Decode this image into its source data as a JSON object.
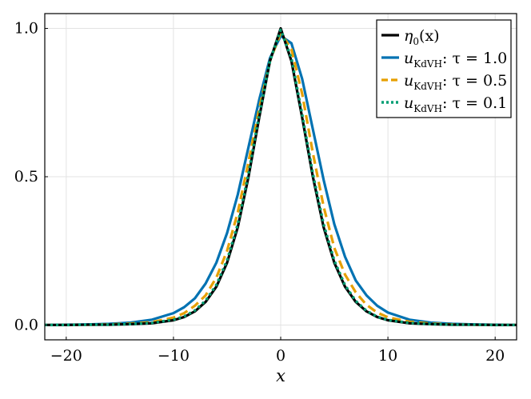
{
  "chart_data": {
    "type": "line",
    "title": "",
    "xlabel": "x",
    "ylabel": "",
    "xlim": [
      -22,
      22
    ],
    "ylim": [
      -0.05,
      1.05
    ],
    "grid": true,
    "legend_position": "top-right",
    "x_ticks": [
      -20,
      -10,
      0,
      10,
      20
    ],
    "x_tick_labels": [
      "−20",
      "−10",
      "0",
      "10",
      "20"
    ],
    "y_ticks": [
      0.0,
      0.5,
      1.0
    ],
    "y_tick_labels": [
      "0.0",
      "0.5",
      "1.0"
    ],
    "x": [
      -22,
      -20,
      -18,
      -16,
      -14,
      -12,
      -10,
      -9,
      -8,
      -7,
      -6,
      -5,
      -4,
      -3,
      -2,
      -1,
      0,
      1,
      2,
      3,
      4,
      5,
      6,
      7,
      8,
      9,
      10,
      12,
      14,
      16,
      18,
      20,
      22
    ],
    "series": [
      {
        "name": "η₀(x)",
        "legend_main": "η",
        "legend_sub": "0",
        "legend_rest": "(x)",
        "color": "#000000",
        "dash": "solid",
        "values": [
          0.0,
          0.0,
          0.001,
          0.001,
          0.003,
          0.006,
          0.016,
          0.027,
          0.046,
          0.078,
          0.129,
          0.21,
          0.33,
          0.5,
          0.7,
          0.89,
          1.0,
          0.89,
          0.7,
          0.5,
          0.33,
          0.21,
          0.129,
          0.078,
          0.046,
          0.027,
          0.016,
          0.006,
          0.003,
          0.001,
          0.001,
          0.0,
          0.0
        ]
      },
      {
        "name": "u_KdVH : τ = 1.0",
        "legend_main": "u",
        "legend_sub": "KdVH",
        "legend_rest": ": τ = 1.0",
        "color": "#0072b2",
        "dash": "solid",
        "values": [
          0.0,
          0.001,
          0.002,
          0.004,
          0.008,
          0.018,
          0.04,
          0.06,
          0.09,
          0.14,
          0.21,
          0.31,
          0.44,
          0.6,
          0.76,
          0.9,
          0.975,
          0.95,
          0.83,
          0.66,
          0.49,
          0.34,
          0.23,
          0.15,
          0.1,
          0.065,
          0.042,
          0.018,
          0.008,
          0.004,
          0.002,
          0.001,
          0.0
        ]
      },
      {
        "name": "u_KdVH : τ = 0.5",
        "legend_main": "u",
        "legend_sub": "KdVH",
        "legend_rest": ": τ = 0.5",
        "color": "#e69f00",
        "dash": "dashed",
        "values": [
          0.0,
          0.0,
          0.001,
          0.002,
          0.005,
          0.01,
          0.025,
          0.04,
          0.065,
          0.1,
          0.16,
          0.25,
          0.38,
          0.55,
          0.73,
          0.89,
          0.985,
          0.93,
          0.78,
          0.58,
          0.4,
          0.26,
          0.17,
          0.11,
          0.068,
          0.042,
          0.026,
          0.011,
          0.005,
          0.002,
          0.001,
          0.0,
          0.0
        ]
      },
      {
        "name": "u_KdVH : τ = 0.1",
        "legend_main": "u",
        "legend_sub": "KdVH",
        "legend_rest": ": τ = 0.1",
        "color": "#009e73",
        "dash": "dotted",
        "values": [
          0.0,
          0.0,
          0.001,
          0.001,
          0.003,
          0.007,
          0.018,
          0.029,
          0.049,
          0.082,
          0.135,
          0.218,
          0.34,
          0.51,
          0.71,
          0.89,
          0.995,
          0.9,
          0.71,
          0.51,
          0.34,
          0.217,
          0.134,
          0.081,
          0.048,
          0.028,
          0.017,
          0.007,
          0.003,
          0.001,
          0.001,
          0.0,
          0.0
        ]
      }
    ]
  }
}
